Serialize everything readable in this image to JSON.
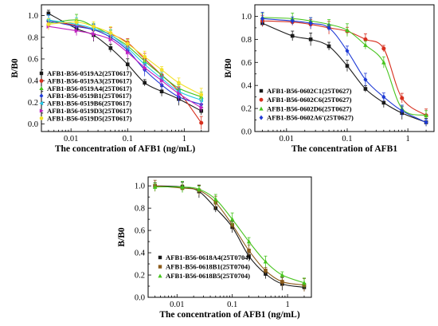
{
  "colors": {
    "black": "#1a1a1a",
    "red": "#d7301f",
    "blue": "#1f3bd6",
    "green": "#46c41d",
    "purple": "#c020c0",
    "cyan": "#22c8e8",
    "yellow": "#f2e02a",
    "olive": "#8b5a1a"
  },
  "chart_data": [
    {
      "type": "scatter",
      "title": "",
      "xlabel": "The concentration of AFB1 (ng/mL)",
      "ylabel": "B/B0",
      "x_scale": "log",
      "xlim": [
        0.003,
        2.7
      ],
      "ylim": [
        -0.07,
        1.1
      ],
      "x_ticks": [
        0.01,
        0.1,
        1
      ],
      "x_tick_labels": [
        "0.01",
        "0.1",
        "1"
      ],
      "y_ticks": [
        0.0,
        0.2,
        0.4,
        0.6,
        0.8,
        1.0
      ],
      "y_tick_labels": [
        "0.0",
        "0.2",
        "0.4",
        "0.6",
        "0.8",
        "1.0"
      ],
      "grid": false,
      "fitted_curves": true,
      "legend_position": "lower-left",
      "x": [
        0.004,
        0.0125,
        0.025,
        0.05,
        0.1,
        0.2,
        0.4,
        0.8,
        2
      ],
      "series": [
        {
          "name": "AFB1-B56-0519A2(25T0617)",
          "marker": "square",
          "color": "black",
          "values": [
            1.02,
            0.88,
            0.82,
            0.7,
            0.55,
            0.38,
            0.3,
            0.23,
            0.12
          ]
        },
        {
          "name": "AFB1-B56-0519A3(25T0617)",
          "marker": "circle",
          "color": "red",
          "values": [
            0.95,
            0.91,
            0.87,
            0.83,
            0.75,
            0.6,
            0.45,
            0.3,
            0.01
          ]
        },
        {
          "name": "AFB1-B56-0519A4(25T0617)",
          "marker": "triangle-up",
          "color": "green",
          "values": [
            0.93,
            0.96,
            0.9,
            0.82,
            0.72,
            0.58,
            0.45,
            0.33,
            0.25
          ]
        },
        {
          "name": "AFB1-B56-0519B1(25T0617)",
          "marker": "diamond",
          "color": "blue",
          "values": [
            0.95,
            0.9,
            0.87,
            0.8,
            0.68,
            0.5,
            0.36,
            0.25,
            0.18
          ]
        },
        {
          "name": "AFB1-B56-0519B6(25T0617)",
          "marker": "triangle-left",
          "color": "cyan",
          "values": [
            0.96,
            0.92,
            0.88,
            0.82,
            0.7,
            0.55,
            0.42,
            0.3,
            0.22
          ]
        },
        {
          "name": "AFB1-B56-0519D3(25T0617)",
          "marker": "triangle-right",
          "color": "purple",
          "values": [
            0.9,
            0.86,
            0.83,
            0.78,
            0.66,
            0.52,
            0.4,
            0.28,
            0.15
          ]
        },
        {
          "name": "AFB1-B56-0519D5(25T0617)",
          "marker": "hexagon",
          "color": "yellow",
          "values": [
            0.92,
            0.94,
            0.9,
            0.84,
            0.74,
            0.62,
            0.5,
            0.38,
            0.27
          ]
        }
      ]
    },
    {
      "type": "scatter",
      "title": "",
      "xlabel": "The concentration of AFB1",
      "ylabel": "B/B0",
      "x_scale": "log",
      "xlim": [
        0.003,
        2.7
      ],
      "ylim": [
        0.0,
        1.1
      ],
      "x_ticks": [
        0.01,
        0.1,
        1
      ],
      "x_tick_labels": [
        "0.01",
        "0.1",
        "1"
      ],
      "y_ticks": [
        0.0,
        0.2,
        0.4,
        0.6,
        0.8,
        1.0
      ],
      "y_tick_labels": [
        "0.0",
        "0.2",
        "0.4",
        "0.6",
        "0.8",
        "1.0"
      ],
      "grid": false,
      "fitted_curves": true,
      "legend_position": "lower-left",
      "x": [
        0.004,
        0.0125,
        0.025,
        0.05,
        0.1,
        0.2,
        0.4,
        0.8,
        2
      ],
      "series": [
        {
          "name": "AFB1-B56-0602C1(25T0627)",
          "marker": "square",
          "color": "black",
          "values": [
            0.94,
            0.83,
            0.8,
            0.74,
            0.57,
            0.37,
            0.25,
            0.16,
            0.08
          ]
        },
        {
          "name": "AFB1-B56-0602C6(25T0627)",
          "marker": "circle",
          "color": "red",
          "values": [
            0.96,
            0.95,
            0.93,
            0.9,
            0.87,
            0.8,
            0.72,
            0.29,
            0.14
          ]
        },
        {
          "name": "AFB1-B56-0602D6(25T0627)",
          "marker": "triangle-up",
          "color": "green",
          "values": [
            0.99,
            0.98,
            0.96,
            0.93,
            0.88,
            0.75,
            0.6,
            0.2,
            0.14
          ]
        },
        {
          "name": "AFB1-B56-0602A6'(25T0627)",
          "marker": "diamond",
          "color": "blue",
          "values": [
            0.98,
            0.96,
            0.94,
            0.9,
            0.7,
            0.45,
            0.3,
            0.18,
            0.08
          ]
        }
      ]
    },
    {
      "type": "scatter",
      "title": "",
      "xlabel": "The concentration of AFB1 (ng/mL)",
      "ylabel": "B/B0",
      "x_scale": "log",
      "xlim": [
        0.003,
        2.7
      ],
      "ylim": [
        0.0,
        1.08
      ],
      "x_ticks": [
        0.01,
        0.1,
        1
      ],
      "x_tick_labels": [
        "0.01",
        "0.1",
        "1"
      ],
      "y_ticks": [
        0.0,
        0.2,
        0.4,
        0.6,
        0.8,
        1.0
      ],
      "y_tick_labels": [
        "0.0",
        "0.2",
        "0.4",
        "0.6",
        "0.8",
        "1.0"
      ],
      "grid": false,
      "fitted_curves": true,
      "legend_position": "lower-left",
      "x": [
        0.004,
        0.0125,
        0.025,
        0.05,
        0.1,
        0.2,
        0.4,
        0.8,
        2
      ],
      "series": [
        {
          "name": "AFB1-B56-0618A4(25T0704)",
          "marker": "square",
          "color": "black",
          "values": [
            1.0,
            0.99,
            0.95,
            0.8,
            0.63,
            0.37,
            0.21,
            0.12,
            0.09
          ]
        },
        {
          "name": "AFB1-B56-0618B1(25T0704)",
          "marker": "square",
          "color": "olive",
          "values": [
            1.0,
            0.98,
            0.96,
            0.85,
            0.65,
            0.42,
            0.24,
            0.14,
            0.11
          ]
        },
        {
          "name": "AFB1-B56-0618B5(25T0704)",
          "marker": "triangle-up",
          "color": "green",
          "values": [
            0.99,
            0.99,
            0.97,
            0.88,
            0.7,
            0.5,
            0.32,
            0.2,
            0.13
          ]
        }
      ]
    }
  ]
}
